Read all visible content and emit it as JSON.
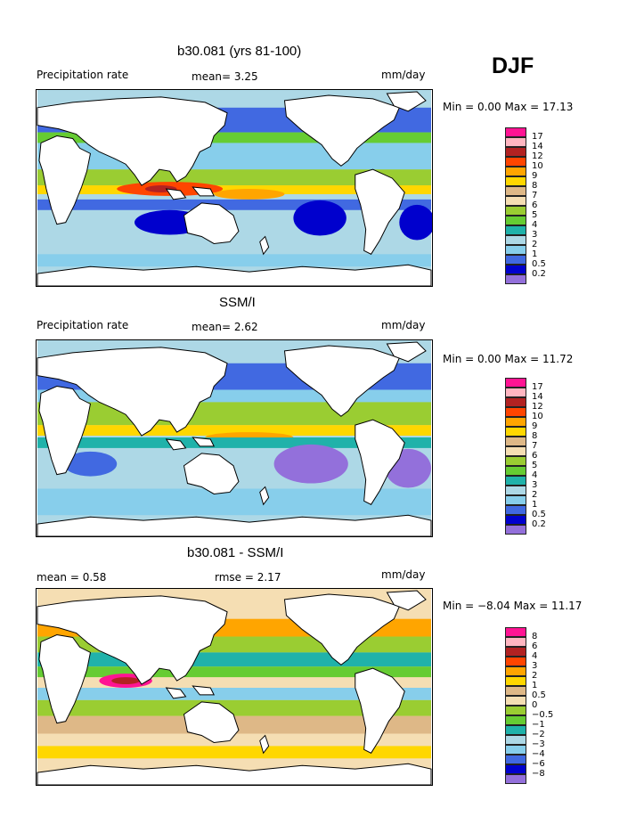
{
  "season": "DJF",
  "panels": [
    {
      "title": "b30.081 (yrs 81-100)",
      "left_label": "Precipitation rate",
      "mid_label": "mean=   3.25",
      "mid2_label": "",
      "units": "mm/day",
      "min_max": "Min =   0.00 Max =  17.13",
      "legend": [
        "17",
        "14",
        "12",
        "10",
        "9",
        "8",
        "7",
        "6",
        "5",
        "4",
        "3",
        "2",
        "1",
        "0.5",
        "0.2"
      ],
      "colors": [
        "#ff1493",
        "#ffb6c1",
        "#b22222",
        "#ff4500",
        "#ffa500",
        "#ffd700",
        "#deb887",
        "#f5deb3",
        "#9acd32",
        "#66cc33",
        "#20b2aa",
        "#add8e6",
        "#87ceeb",
        "#4169e1",
        "#0000cd",
        "#9370db"
      ]
    },
    {
      "title": "SSM/I",
      "left_label": "Precipitation rate",
      "mid_label": "mean=   2.62",
      "mid2_label": "",
      "units": "mm/day",
      "min_max": "Min =   0.00 Max =  11.72",
      "legend": [
        "17",
        "14",
        "12",
        "10",
        "9",
        "8",
        "7",
        "6",
        "5",
        "4",
        "3",
        "2",
        "1",
        "0.5",
        "0.2"
      ],
      "colors": [
        "#ff1493",
        "#ffb6c1",
        "#b22222",
        "#ff4500",
        "#ffa500",
        "#ffd700",
        "#deb887",
        "#f5deb3",
        "#9acd32",
        "#66cc33",
        "#20b2aa",
        "#add8e6",
        "#87ceeb",
        "#4169e1",
        "#0000cd",
        "#9370db"
      ]
    },
    {
      "title": "b30.081 - SSM/I",
      "left_label": "mean =   0.58",
      "mid_label": "rmse =   2.17",
      "mid2_label": "",
      "units": "mm/day",
      "min_max": "Min =  −8.04 Max =  11.17",
      "legend": [
        "8",
        "6",
        "4",
        "3",
        "2",
        "1",
        "0.5",
        "0",
        "−0.5",
        "−1",
        "−2",
        "−3",
        "−4",
        "−6",
        "−8"
      ],
      "colors": [
        "#ff1493",
        "#ffb6c1",
        "#b22222",
        "#ff4500",
        "#ffa500",
        "#ffd700",
        "#deb887",
        "#f5deb3",
        "#9acd32",
        "#66cc33",
        "#20b2aa",
        "#add8e6",
        "#87ceeb",
        "#4169e1",
        "#0000cd",
        "#9370db"
      ]
    }
  ]
}
